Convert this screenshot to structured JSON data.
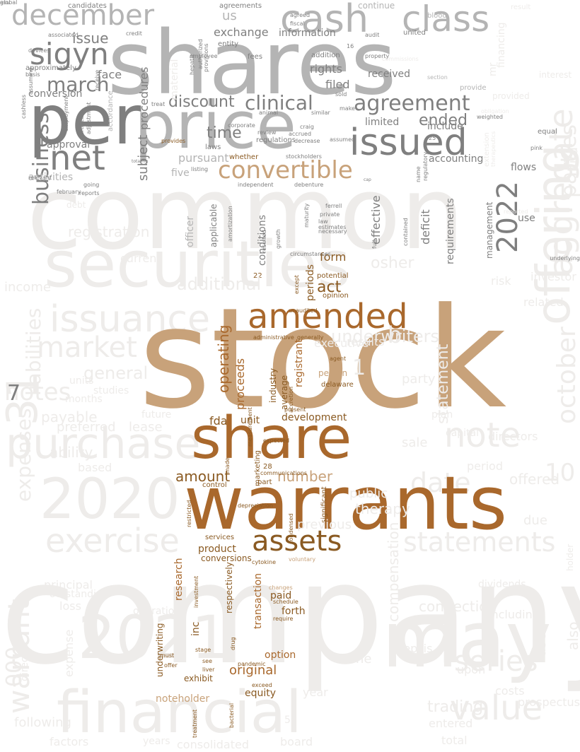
{
  "palette": {
    "bg": "#ffffff",
    "faint": "#eeecea",
    "gray": "#b4b4b4",
    "darkgray": "#7f7f7f",
    "tan": "#c8a27a",
    "brown": "#a9682c",
    "darkbrown": "#8a5a22"
  },
  "words": [
    {
      "text": "company",
      "color": "faint"
    },
    {
      "text": "common",
      "color": "faint"
    },
    {
      "text": "securities",
      "color": "faint"
    },
    {
      "text": "financial",
      "color": "faint"
    },
    {
      "text": "2021",
      "color": "faint"
    },
    {
      "text": "may",
      "color": "faint"
    },
    {
      "text": "2020",
      "color": "faint"
    },
    {
      "text": "purchase",
      "color": "faint"
    },
    {
      "text": "offering",
      "color": "faint"
    },
    {
      "text": "aggregate",
      "color": "faint"
    },
    {
      "text": "october",
      "color": "faint"
    },
    {
      "text": "note",
      "color": "faint"
    },
    {
      "text": "31",
      "color": "faint"
    },
    {
      "text": "issuance",
      "color": "faint"
    },
    {
      "text": "exercise",
      "color": "faint"
    },
    {
      "text": "value",
      "color": "faint"
    },
    {
      "text": "statements",
      "color": "faint"
    },
    {
      "text": "series",
      "color": "faint"
    },
    {
      "text": "date",
      "color": "faint"
    },
    {
      "text": "market",
      "color": "faint"
    },
    {
      "text": "warrant",
      "color": "faint"
    },
    {
      "text": "liabilities",
      "color": "faint"
    },
    {
      "text": "notes",
      "color": "faint"
    },
    {
      "text": "parties",
      "color": "faint"
    },
    {
      "text": "000",
      "color": "faint"
    },
    {
      "text": "stock",
      "color": "tan"
    },
    {
      "text": "warrants",
      "color": "brown"
    },
    {
      "text": "share",
      "color": "brown"
    },
    {
      "text": "amended",
      "color": "brown"
    },
    {
      "text": "assets",
      "color": "darkbrown"
    },
    {
      "text": "shares",
      "color": "gray"
    },
    {
      "text": "price",
      "color": "gray"
    },
    {
      "text": "per",
      "color": "darkgray"
    },
    {
      "text": "cash",
      "color": "gray"
    },
    {
      "text": "class",
      "color": "gray"
    },
    {
      "text": "december",
      "color": "gray"
    },
    {
      "text": "issued",
      "color": "darkgray"
    },
    {
      "text": "convertible",
      "color": "tan"
    },
    {
      "text": "net",
      "color": "darkgray"
    },
    {
      "text": "sigyn",
      "color": "darkgray"
    },
    {
      "text": "2022",
      "color": "darkgray"
    },
    {
      "text": "agreement",
      "color": "darkgray"
    },
    {
      "text": "clinical",
      "color": "darkgray"
    },
    {
      "text": "discount",
      "color": "darkgray"
    },
    {
      "text": "business",
      "color": "darkgray"
    },
    {
      "text": "march",
      "color": "darkgray"
    },
    {
      "text": "ended",
      "color": "darkgray"
    },
    {
      "text": "time",
      "color": "darkgray"
    },
    {
      "text": "issue",
      "color": "darkgray"
    },
    {
      "text": "us",
      "color": "gray"
    },
    {
      "text": "exchange",
      "color": "darkgray"
    },
    {
      "text": "information",
      "color": "darkgray"
    },
    {
      "text": "rights",
      "color": "darkgray"
    },
    {
      "text": "received",
      "color": "darkgray"
    },
    {
      "text": "filed",
      "color": "darkgray"
    },
    {
      "text": "limited",
      "color": "darkgray"
    },
    {
      "text": "face",
      "color": "darkgray"
    },
    {
      "text": "conversion",
      "color": "darkgray"
    },
    {
      "text": "approval",
      "color": "darkgray"
    },
    {
      "text": "subject",
      "color": "darkgray"
    },
    {
      "text": "include",
      "color": "darkgray"
    },
    {
      "text": "accounting",
      "color": "darkgray"
    },
    {
      "text": "flows",
      "color": "darkgray"
    },
    {
      "text": "pursuant",
      "color": "gray"
    },
    {
      "text": "five",
      "color": "gray"
    },
    {
      "text": "activities",
      "color": "gray"
    },
    {
      "text": "continue",
      "color": "gray"
    },
    {
      "text": "requirements",
      "color": "darkgray"
    },
    {
      "text": "management",
      "color": "darkgray"
    },
    {
      "text": "effective",
      "color": "darkgray"
    },
    {
      "text": "deficit",
      "color": "darkgray"
    },
    {
      "text": "conditions",
      "color": "darkgray"
    },
    {
      "text": "use",
      "color": "darkgray"
    },
    {
      "text": "officer",
      "color": "gray"
    },
    {
      "text": "applicable",
      "color": "darkgray"
    },
    {
      "text": "act",
      "color": "darkbrown"
    },
    {
      "text": "form",
      "color": "darkbrown"
    },
    {
      "text": "periods",
      "color": "darkbrown"
    },
    {
      "text": "operating",
      "color": "brown"
    },
    {
      "text": "proceeds",
      "color": "brown"
    },
    {
      "text": "industry",
      "color": "darkbrown"
    },
    {
      "text": "average",
      "color": "darkbrown"
    },
    {
      "text": "registrant",
      "color": "brown"
    },
    {
      "text": "development",
      "color": "darkbrown"
    },
    {
      "text": "fda",
      "color": "darkbrown"
    },
    {
      "text": "unit",
      "color": "darkbrown"
    },
    {
      "text": "person",
      "color": "tan"
    },
    {
      "text": "amount",
      "color": "darkbrown"
    },
    {
      "text": "number",
      "color": "tan"
    },
    {
      "text": "product",
      "color": "darkbrown"
    },
    {
      "text": "conversions",
      "color": "darkbrown"
    },
    {
      "text": "research",
      "color": "brown"
    },
    {
      "text": "inc",
      "color": "darkbrown"
    },
    {
      "text": "respectively",
      "color": "darkbrown"
    },
    {
      "text": "transaction",
      "color": "brown"
    },
    {
      "text": "paid",
      "color": "darkbrown"
    },
    {
      "text": "forth",
      "color": "darkbrown"
    },
    {
      "text": "option",
      "color": "brown"
    },
    {
      "text": "original",
      "color": "brown"
    },
    {
      "text": "equity",
      "color": "darkbrown"
    },
    {
      "text": "noteholder",
      "color": "tan"
    },
    {
      "text": "underwriting",
      "color": "darkbrown"
    },
    {
      "text": "exhibit",
      "color": "darkbrown"
    },
    {
      "text": "marketing",
      "color": "darkbrown"
    },
    {
      "text": "services",
      "color": "darkbrown"
    },
    {
      "text": "control",
      "color": "darkbrown"
    },
    {
      "text": "part",
      "color": "darkbrown"
    },
    {
      "text": "22",
      "color": "darkbrown"
    },
    {
      "text": "28",
      "color": "darkbrown"
    },
    {
      "text": "potential",
      "color": "darkbrown"
    },
    {
      "text": "opinion",
      "color": "darkbrown"
    },
    {
      "text": "delaware",
      "color": "darkbrown"
    },
    {
      "text": "changes",
      "color": "tan"
    },
    {
      "text": "schedule",
      "color": "darkbrown"
    },
    {
      "text": "whether",
      "color": "darkbrown"
    },
    {
      "text": "stockholders",
      "color": "darkgray"
    },
    {
      "text": "regulations",
      "color": "darkgray"
    },
    {
      "text": "laws",
      "color": "darkgray"
    },
    {
      "text": "entity",
      "color": "darkgray"
    },
    {
      "text": "fees",
      "color": "darkgray"
    },
    {
      "text": "addition",
      "color": "darkgray"
    },
    {
      "text": "property",
      "color": "darkgray"
    },
    {
      "text": "agreed",
      "color": "darkgray"
    },
    {
      "text": "fiscal",
      "color": "darkgray"
    },
    {
      "text": "audit",
      "color": "darkgray"
    },
    {
      "text": "united",
      "color": "darkgray"
    },
    {
      "text": "candidates",
      "color": "darkgray"
    },
    {
      "text": "agreements",
      "color": "darkgray"
    },
    {
      "text": "approximately",
      "color": "darkgray"
    },
    {
      "text": "basis",
      "color": "darkgray"
    },
    {
      "text": "associated",
      "color": "darkgray"
    },
    {
      "text": "devices",
      "color": "darkgray"
    },
    {
      "text": "credit",
      "color": "darkgray"
    },
    {
      "text": "ferrell",
      "color": "darkgray"
    },
    {
      "text": "private",
      "color": "darkgray"
    },
    {
      "text": "law",
      "color": "darkgray"
    },
    {
      "text": "estimates",
      "color": "darkgray"
    },
    {
      "text": "necessary",
      "color": "darkgray"
    },
    {
      "text": "maturity",
      "color": "darkgray"
    },
    {
      "text": "independent",
      "color": "darkgray"
    },
    {
      "text": "debenture",
      "color": "darkgray"
    },
    {
      "text": "relevant",
      "color": "darkgray"
    },
    {
      "text": "going",
      "color": "darkgray"
    },
    {
      "text": "reports",
      "color": "darkgray"
    },
    {
      "text": "craig",
      "color": "darkgray"
    },
    {
      "text": "accrued",
      "color": "darkgray"
    },
    {
      "text": "decrease",
      "color": "darkgray"
    },
    {
      "text": "assumed",
      "color": "darkgray"
    },
    {
      "text": "corporate",
      "color": "darkgray"
    },
    {
      "text": "review",
      "color": "darkgray"
    },
    {
      "text": "animal",
      "color": "darkgray"
    },
    {
      "text": "similar",
      "color": "darkgray"
    },
    {
      "text": "make",
      "color": "darkgray"
    },
    {
      "text": "sold",
      "color": "darkgray"
    },
    {
      "text": "employee",
      "color": "darkgray"
    },
    {
      "text": "treat",
      "color": "darkgray"
    },
    {
      "text": "pink",
      "color": "darkgray"
    },
    {
      "text": "weighted",
      "color": "darkgray"
    },
    {
      "text": "equal",
      "color": "darkgray"
    },
    {
      "text": "blood",
      "color": "gray"
    },
    {
      "text": "provide",
      "color": "gray"
    },
    {
      "text": "section",
      "color": "gray"
    },
    {
      "text": "name",
      "color": "darkgray"
    },
    {
      "text": "listing",
      "color": "darkgray"
    },
    {
      "text": "receive",
      "color": "darkgray"
    },
    {
      "text": "hepatic",
      "color": "darkgray"
    },
    {
      "text": "authorized",
      "color": "darkgray"
    },
    {
      "text": "provisions",
      "color": "darkgray"
    },
    {
      "text": "procedures",
      "color": "darkgray"
    },
    {
      "text": "accordance",
      "color": "gray"
    },
    {
      "text": "adjustment",
      "color": "darkgray"
    },
    {
      "text": "certificate",
      "color": "darkgray"
    },
    {
      "text": "employment",
      "color": "darkgray"
    },
    {
      "text": "cashless",
      "color": "darkgray"
    },
    {
      "text": "assuming",
      "color": "darkgray"
    },
    {
      "text": "february",
      "color": "darkgray"
    },
    {
      "text": "growth",
      "color": "darkgray"
    },
    {
      "text": "amortization",
      "color": "darkgray"
    },
    {
      "text": "resulted",
      "color": "darkgray"
    },
    {
      "text": "full",
      "color": "darkgray"
    },
    {
      "text": "contained",
      "color": "darkgray"
    },
    {
      "text": "circumstances",
      "color": "darkgray"
    },
    {
      "text": "except",
      "color": "darkbrown"
    },
    {
      "text": "unaudited",
      "color": "darkbrown"
    },
    {
      "text": "administrative",
      "color": "darkbrown"
    },
    {
      "text": "generally",
      "color": "darkbrown"
    },
    {
      "text": "agent",
      "color": "darkbrown"
    },
    {
      "text": "present",
      "color": "darkbrown"
    },
    {
      "text": "expected",
      "color": "darkbrown"
    },
    {
      "text": "accretion",
      "color": "darkbrown"
    },
    {
      "text": "measurement",
      "color": "darkbrown"
    },
    {
      "text": "communications",
      "color": "darkbrown"
    },
    {
      "text": "made",
      "color": "darkbrown"
    },
    {
      "text": "depreciation",
      "color": "darkbrown"
    },
    {
      "text": "condensed",
      "color": "darkbrown"
    },
    {
      "text": "significant",
      "color": "darkbrown"
    },
    {
      "text": "voluntary",
      "color": "tan"
    },
    {
      "text": "cytokine",
      "color": "darkbrown"
    },
    {
      "text": "investment",
      "color": "darkbrown"
    },
    {
      "text": "restricted",
      "color": "darkbrown"
    },
    {
      "text": "require",
      "color": "darkbrown"
    },
    {
      "text": "must",
      "color": "darkbrown"
    },
    {
      "text": "offer",
      "color": "darkbrown"
    },
    {
      "text": "see",
      "color": "darkbrown"
    },
    {
      "text": "liver",
      "color": "darkbrown"
    },
    {
      "text": "pandemic",
      "color": "darkbrown"
    },
    {
      "text": "drug",
      "color": "darkbrown"
    },
    {
      "text": "stage",
      "color": "darkbrown"
    },
    {
      "text": "exceed",
      "color": "darkbrown"
    },
    {
      "text": "treatment",
      "color": "darkbrown"
    },
    {
      "text": "bacterial",
      "color": "darkbrown"
    },
    {
      "text": "provides",
      "color": "darkbrown"
    },
    {
      "text": "16",
      "color": "darkgray"
    },
    {
      "text": "25",
      "color": "darkgray"
    },
    {
      "text": "7",
      "color": "darkgray"
    },
    {
      "text": "1",
      "color": "faint"
    },
    {
      "text": "10",
      "color": "faint"
    },
    {
      "text": "b",
      "color": "faint"
    },
    {
      "text": "osher",
      "color": "faint"
    },
    {
      "text": "additional",
      "color": "faint"
    },
    {
      "text": "current",
      "color": "faint"
    },
    {
      "text": "income",
      "color": "faint"
    },
    {
      "text": "registration",
      "color": "faint"
    },
    {
      "text": "debt",
      "color": "faint"
    },
    {
      "text": "general",
      "color": "faint"
    },
    {
      "text": "units",
      "color": "faint"
    },
    {
      "text": "months",
      "color": "faint"
    },
    {
      "text": "studies",
      "color": "faint"
    },
    {
      "text": "payable",
      "color": "faint"
    },
    {
      "text": "preferred",
      "color": "faint"
    },
    {
      "text": "lease",
      "color": "faint"
    },
    {
      "text": "future",
      "color": "faint"
    },
    {
      "text": "ability",
      "color": "faint"
    },
    {
      "text": "expenses",
      "color": "faint"
    },
    {
      "text": "based",
      "color": "faint"
    },
    {
      "text": "principal",
      "color": "faint"
    },
    {
      "text": "outstanding",
      "color": "faint"
    },
    {
      "text": "loss",
      "color": "faint"
    },
    {
      "text": "director",
      "color": "faint"
    },
    {
      "text": "expense",
      "color": "faint"
    },
    {
      "text": "following",
      "color": "faint"
    },
    {
      "text": "factors",
      "color": "faint"
    },
    {
      "text": "years",
      "color": "faint"
    },
    {
      "text": "consolidated",
      "color": "faint"
    },
    {
      "text": "board",
      "color": "faint"
    },
    {
      "text": "statement",
      "color": "faint"
    },
    {
      "text": "underwriters",
      "color": "faint"
    },
    {
      "text": "capital",
      "color": "faint"
    },
    {
      "text": "directors",
      "color": "faint"
    },
    {
      "text": "period",
      "color": "faint"
    },
    {
      "text": "offered",
      "color": "faint"
    },
    {
      "text": "public",
      "color": "faint"
    },
    {
      "text": "therapy",
      "color": "faint"
    },
    {
      "text": "previous",
      "color": "faint"
    },
    {
      "text": "due",
      "color": "faint"
    },
    {
      "text": "plan",
      "color": "faint"
    },
    {
      "text": "sale",
      "color": "faint"
    },
    {
      "text": "party",
      "color": "faint"
    },
    {
      "text": "results",
      "color": "faint"
    },
    {
      "text": "related",
      "color": "faint"
    },
    {
      "text": "investor",
      "color": "faint"
    },
    {
      "text": "risk",
      "color": "faint"
    },
    {
      "text": "executive",
      "color": "faint"
    },
    {
      "text": "sepsis",
      "color": "faint"
    },
    {
      "text": "one",
      "color": "faint"
    },
    {
      "text": "compensation",
      "color": "faint"
    },
    {
      "text": "connection",
      "color": "faint"
    },
    {
      "text": "including",
      "color": "faint"
    },
    {
      "text": "upon",
      "color": "faint"
    },
    {
      "text": "used",
      "color": "faint"
    },
    {
      "text": "also",
      "color": "faint"
    },
    {
      "text": "costs",
      "color": "faint"
    },
    {
      "text": "prospectus",
      "color": "faint"
    },
    {
      "text": "trading",
      "color": "faint"
    },
    {
      "text": "entered",
      "color": "faint"
    },
    {
      "text": "year",
      "color": "faint"
    },
    {
      "text": "total",
      "color": "faint"
    },
    {
      "text": "holder",
      "color": "faint"
    },
    {
      "text": "operations",
      "color": "faint"
    },
    {
      "text": "dividends",
      "color": "faint"
    },
    {
      "text": "50",
      "color": "faint"
    },
    {
      "text": "third",
      "color": "faint"
    },
    {
      "text": "mr",
      "color": "faint"
    },
    {
      "text": "financing",
      "color": "faint"
    },
    {
      "text": "interest",
      "color": "faint"
    },
    {
      "text": "provided",
      "color": "faint"
    },
    {
      "text": "result",
      "color": "faint"
    },
    {
      "text": "reported",
      "color": "faint"
    },
    {
      "text": "material",
      "color": "faint"
    },
    {
      "text": "commissions",
      "color": "faint"
    },
    {
      "text": "therapeutics",
      "color": "faint"
    },
    {
      "text": "extension",
      "color": "faint"
    },
    {
      "text": "obligation",
      "color": "faint"
    },
    {
      "text": "regulatory",
      "color": "darkgray"
    },
    {
      "text": "cap",
      "color": "darkgray"
    },
    {
      "text": "totaling",
      "color": "darkgray"
    },
    {
      "text": "underlying",
      "color": "darkgray"
    },
    {
      "text": "global",
      "color": "darkgray"
    },
    {
      "text": "asu",
      "color": "darkgray"
    }
  ]
}
